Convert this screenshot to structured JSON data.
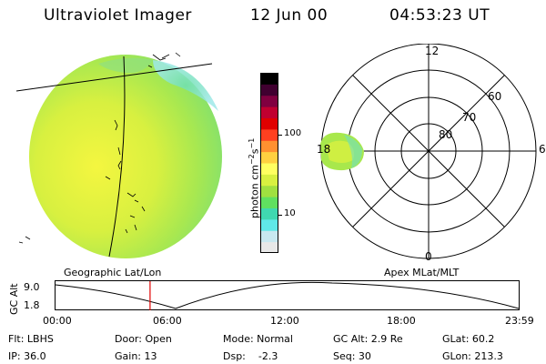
{
  "header": {
    "instrument": "Ultraviolet Imager",
    "date": "12 Jun 00",
    "time": "04:53:23 UT"
  },
  "colorbar": {
    "unit_label": "photon cm",
    "unit_exp1": "−2",
    "unit_mid": "s",
    "unit_exp2": "−1",
    "tick_100": "100",
    "tick_10": "10",
    "colors": [
      "#e8e8e8",
      "#c8e8f0",
      "#60e8e8",
      "#40d8b0",
      "#60e060",
      "#a0e040",
      "#d8f040",
      "#ffff60",
      "#ffd040",
      "#ff9030",
      "#ff4020",
      "#e00000",
      "#c00030",
      "#800040",
      "#400030",
      "#000000"
    ]
  },
  "polar": {
    "mlt_labels": {
      "top": "12",
      "right": "6",
      "bottom": "0",
      "left": "18"
    },
    "lat_labels": {
      "l60": "60",
      "l70": "70",
      "l80": "80"
    }
  },
  "timeline": {
    "left_title": "Geographic Lat/Lon",
    "right_title": "Apex MLat/MLT",
    "axis_label": "GC Alt",
    "y_top": "9.0",
    "y_bottom": "1.8",
    "x_ticks": [
      "00:00",
      "06:00",
      "12:00",
      "18:00",
      "23:59"
    ],
    "marker_hour": 4.89
  },
  "status": {
    "flt": "Flt: LBHS",
    "door": "Door: Open",
    "mode": "Mode: Normal",
    "gc_alt": "GC Alt: 2.9 Re",
    "glat": "GLat:  60.2",
    "ip": "IP: 36.0",
    "gain": "Gain: 13",
    "dsp": "Dsp:    -2.3",
    "seq": "Seq: 30",
    "glon": "GLon: 213.3"
  }
}
